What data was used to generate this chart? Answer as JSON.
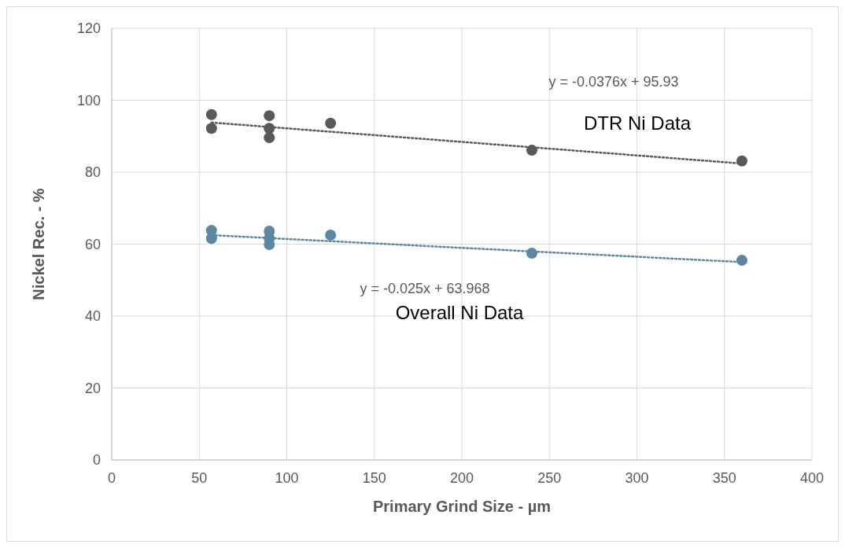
{
  "chart_data": {
    "type": "scatter",
    "xlabel": "Primary Grind Size - µm",
    "ylabel": "Nickel Rec. - %",
    "xlim": [
      0,
      400
    ],
    "xticks": [
      0,
      50,
      100,
      150,
      200,
      250,
      300,
      350,
      400
    ],
    "ylim": [
      0,
      120
    ],
    "yticks": [
      0,
      20,
      40,
      60,
      80,
      100,
      120
    ],
    "grid": true,
    "series": [
      {
        "marker": "circle",
        "color": "#595959",
        "x": [
          57,
          57,
          90,
          90,
          90,
          125,
          240,
          360
        ],
        "values": [
          96.0,
          92.2,
          95.7,
          92.2,
          89.6,
          93.6,
          86.1,
          83.1
        ]
      },
      {
        "marker": "circle",
        "color": "#5b87a3",
        "x": [
          57,
          57,
          90,
          90,
          90,
          125,
          240,
          360
        ],
        "values": [
          63.8,
          61.6,
          63.6,
          61.6,
          59.9,
          62.5,
          57.5,
          55.5
        ]
      },
      {
        "type": "line",
        "marker": "none",
        "line_style": "dotted",
        "color": "#595959",
        "x": [
          57,
          360
        ],
        "values": [
          93.8,
          82.4
        ]
      },
      {
        "type": "line",
        "marker": "none",
        "line_style": "dotted",
        "color": "#5b87a3",
        "x": [
          57,
          360
        ],
        "values": [
          62.5,
          55.0
        ]
      }
    ],
    "annotations": [
      "y = -0.0376x + 95.93",
      "DTR Ni Data",
      "y = -0.025x + 63.968",
      "Overall Ni Data"
    ]
  }
}
